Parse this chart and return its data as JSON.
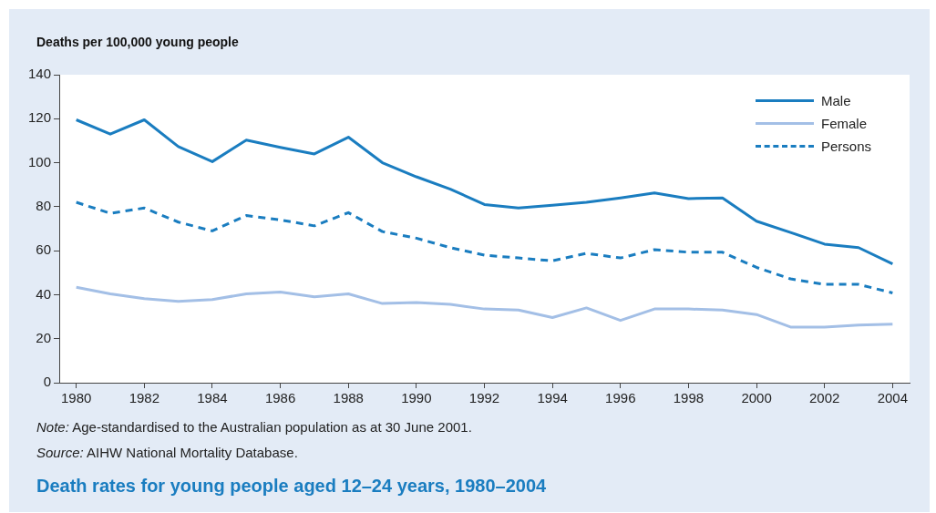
{
  "chart_data": {
    "type": "line",
    "title": "Death rates for young people aged 12–24 years, 1980–2004",
    "ylabel": "Deaths per 100,000 young people",
    "x": [
      1980,
      1981,
      1982,
      1983,
      1984,
      1985,
      1986,
      1987,
      1988,
      1989,
      1990,
      1991,
      1992,
      1993,
      1994,
      1995,
      1996,
      1997,
      1998,
      1999,
      2000,
      2001,
      2002,
      2003,
      2004
    ],
    "series": [
      {
        "name": "Male",
        "color": "#1a7dc0",
        "line_style": "solid",
        "values": [
          119.5,
          113,
          119.5,
          107.3,
          100.5,
          110.3,
          107,
          104,
          111.6,
          100,
          93.6,
          88,
          81,
          79.4,
          80.7,
          82,
          84,
          86.3,
          83.7,
          84,
          73.4,
          68.3,
          63,
          61.4,
          54
        ]
      },
      {
        "name": "Female",
        "color": "#a3bfe6",
        "line_style": "solid",
        "values": [
          43.4,
          40.4,
          38.2,
          37,
          37.8,
          40.4,
          41.2,
          39,
          40.4,
          36,
          36.5,
          35.6,
          33.5,
          33,
          29.6,
          34,
          28.3,
          33.5,
          33.5,
          33,
          31,
          25.3,
          25.3,
          26.2,
          26.6
        ]
      },
      {
        "name": "Persons",
        "color": "#1a7dc0",
        "line_style": "dashed",
        "values": [
          82,
          77,
          79.4,
          73,
          69,
          76,
          74,
          71.3,
          77.3,
          68.7,
          65.7,
          61.4,
          58,
          56.7,
          55.4,
          58.8,
          56.7,
          60.5,
          59.3,
          59.3,
          52.4,
          47.2,
          44.7,
          44.7,
          40.8
        ]
      }
    ],
    "xlim": [
      1979.5,
      2004.5
    ],
    "xticks": [
      1980,
      1982,
      1984,
      1986,
      1988,
      1990,
      1992,
      1994,
      1996,
      1998,
      2000,
      2002,
      2004
    ],
    "ylim": [
      0,
      140
    ],
    "yticks": [
      0,
      20,
      40,
      60,
      80,
      100,
      120,
      140
    ],
    "legend": "top right",
    "marker": "none",
    "annotations": [
      "Note: Age-standardised to the Australian population as at 30 June 2001.",
      "Source: AIHW National Mortality Database."
    ]
  }
}
